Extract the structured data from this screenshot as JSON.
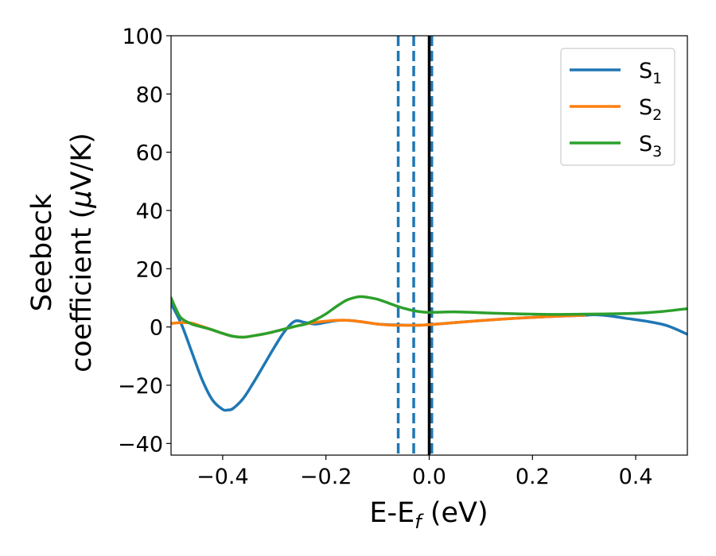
{
  "chart_data": {
    "type": "line",
    "title": "",
    "xlabel": {
      "main": "E-E",
      "sub": "f",
      "tail": " (eV)"
    },
    "ylabel": {
      "line1": "Seebeck",
      "line2_prefix": "coefficient  (",
      "mu": "μ",
      "line2_suffix": "V/K)"
    },
    "xlim": [
      -0.5,
      0.5
    ],
    "ylim": [
      -44,
      100
    ],
    "xticks": [
      -0.4,
      -0.2,
      0.0,
      0.2,
      0.4
    ],
    "xtick_labels": [
      "−0.4",
      "−0.2",
      "0.0",
      "0.2",
      "0.4"
    ],
    "yticks": [
      -40,
      -20,
      0,
      20,
      40,
      60,
      80,
      100
    ],
    "ytick_labels": [
      "−40",
      "−20",
      "0",
      "20",
      "40",
      "60",
      "80",
      "100"
    ],
    "legend_position": "top-right",
    "grid": false,
    "vlines": [
      {
        "x": -0.06,
        "style": "dashed",
        "color": "#1f77b4"
      },
      {
        "x": -0.03,
        "style": "dashed",
        "color": "#1f77b4"
      },
      {
        "x": 0.005,
        "style": "dashed",
        "color": "#1f77b4"
      },
      {
        "x": 0.0,
        "style": "solid",
        "color": "#000000"
      }
    ],
    "series": [
      {
        "name": "S1",
        "label_main": "S",
        "label_sub": "1",
        "color": "#1f77b4",
        "x": [
          -0.5,
          -0.48,
          -0.46,
          -0.44,
          -0.42,
          -0.4,
          -0.39,
          -0.38,
          -0.36,
          -0.34,
          -0.32,
          -0.3,
          -0.28,
          -0.26,
          -0.24,
          -0.22,
          -0.2,
          -0.18,
          -0.16,
          -0.14,
          -0.12,
          -0.1,
          -0.08,
          -0.06,
          -0.04,
          -0.02,
          0.0,
          0.05,
          0.1,
          0.15,
          0.2,
          0.25,
          0.3,
          0.32,
          0.35,
          0.38,
          0.42,
          0.46,
          0.5
        ],
        "y": [
          8.0,
          1.0,
          -8.5,
          -18.0,
          -25.0,
          -28.3,
          -28.5,
          -28.0,
          -24.5,
          -19.0,
          -13.0,
          -7.0,
          -1.5,
          2.0,
          1.5,
          1.0,
          1.6,
          2.2,
          2.3,
          2.0,
          1.5,
          1.0,
          0.8,
          0.7,
          0.6,
          0.6,
          0.8,
          1.5,
          2.2,
          2.8,
          3.3,
          3.7,
          4.0,
          4.2,
          3.8,
          3.0,
          2.0,
          0.5,
          -2.5
        ]
      },
      {
        "name": "S2",
        "label_main": "S",
        "label_sub": "2",
        "color": "#ff7f0e",
        "x": [
          -0.5,
          -0.48,
          -0.46,
          -0.44,
          -0.42,
          -0.4,
          -0.38,
          -0.36,
          -0.34,
          -0.32,
          -0.3,
          -0.28,
          -0.26,
          -0.24,
          -0.22,
          -0.2,
          -0.18,
          -0.16,
          -0.14,
          -0.12,
          -0.1,
          -0.08,
          -0.06,
          -0.04,
          -0.02,
          0.0,
          0.05,
          0.1,
          0.15,
          0.2,
          0.25,
          0.3
        ],
        "y": [
          1.2,
          1.5,
          1.3,
          0.2,
          -1.0,
          -2.2,
          -3.2,
          -3.5,
          -3.0,
          -2.4,
          -1.6,
          -0.7,
          0.2,
          1.0,
          1.6,
          2.0,
          2.3,
          2.3,
          2.0,
          1.5,
          1.0,
          0.7,
          0.6,
          0.6,
          0.6,
          0.8,
          1.5,
          2.2,
          2.8,
          3.3,
          3.7,
          4.0
        ]
      },
      {
        "name": "S3",
        "label_main": "S",
        "label_sub": "3",
        "color": "#2ca02c",
        "x": [
          -0.5,
          -0.49,
          -0.48,
          -0.46,
          -0.44,
          -0.42,
          -0.4,
          -0.38,
          -0.36,
          -0.34,
          -0.32,
          -0.3,
          -0.28,
          -0.26,
          -0.24,
          -0.22,
          -0.2,
          -0.18,
          -0.16,
          -0.14,
          -0.13,
          -0.12,
          -0.1,
          -0.08,
          -0.06,
          -0.04,
          -0.02,
          0.0,
          0.02,
          0.05,
          0.1,
          0.15,
          0.2,
          0.25,
          0.3,
          0.35,
          0.4,
          0.45,
          0.5
        ],
        "y": [
          10.0,
          6.0,
          3.0,
          1.0,
          0.0,
          -1.0,
          -2.2,
          -3.2,
          -3.5,
          -3.0,
          -2.4,
          -1.6,
          -0.7,
          0.2,
          1.0,
          2.5,
          4.5,
          7.0,
          9.2,
          10.3,
          10.4,
          10.2,
          9.5,
          8.3,
          7.0,
          6.0,
          5.3,
          5.0,
          5.1,
          5.2,
          4.9,
          4.6,
          4.4,
          4.3,
          4.4,
          4.5,
          4.7,
          5.3,
          6.3
        ]
      }
    ]
  }
}
